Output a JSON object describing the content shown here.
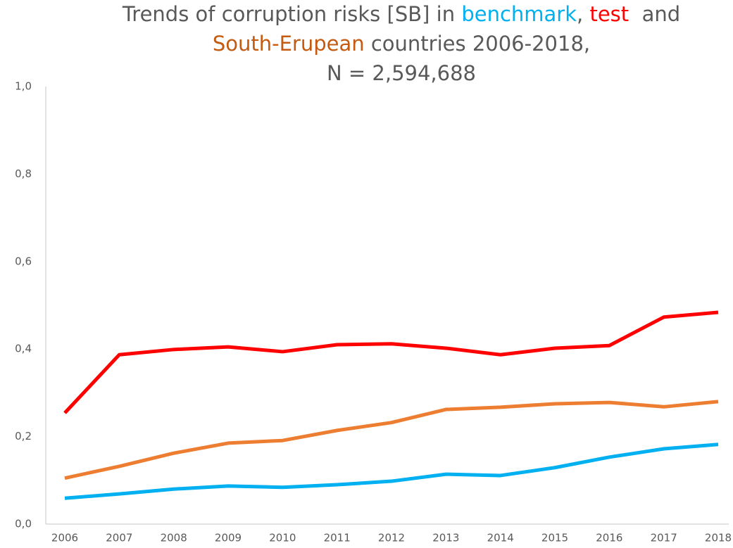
{
  "chart_data": {
    "type": "line",
    "title_lines": [
      [
        {
          "text": "Trends of corruption risks [SB] in ",
          "color": "#595959"
        },
        {
          "text": "benchmark",
          "color": "#00b0f0"
        },
        {
          "text": ", ",
          "color": "#595959"
        },
        {
          "text": "test",
          "color": "#ff0000"
        },
        {
          "text": "  and",
          "color": "#595959"
        }
      ],
      [
        {
          "text": "South-Erupean",
          "color": "#c55a11"
        },
        {
          "text": " countries 2006-2018,",
          "color": "#595959"
        }
      ],
      [
        {
          "text": "N = 2,594,688",
          "color": "#595959"
        }
      ]
    ],
    "categories": [
      "2006",
      "2007",
      "2008",
      "2009",
      "2010",
      "2011",
      "2012",
      "2013",
      "2014",
      "2015",
      "2016",
      "2017",
      "2018"
    ],
    "series": [
      {
        "color": "#ff0000",
        "values": [
          0.254,
          0.387,
          0.399,
          0.405,
          0.394,
          0.41,
          0.412,
          0.402,
          0.387,
          0.402,
          0.408,
          0.473,
          0.484
        ]
      },
      {
        "color": "#ed7d31",
        "values": [
          0.105,
          0.132,
          0.162,
          0.185,
          0.191,
          0.214,
          0.232,
          0.262,
          0.267,
          0.275,
          0.278,
          0.268,
          0.28
        ]
      },
      {
        "color": "#00b0f0",
        "values": [
          0.059,
          0.069,
          0.08,
          0.087,
          0.084,
          0.09,
          0.098,
          0.114,
          0.111,
          0.129,
          0.153,
          0.172,
          0.182
        ]
      }
    ],
    "ylim": [
      0,
      1
    ],
    "yticks": [
      {
        "value": 0,
        "label": "0,0"
      },
      {
        "value": 0.2,
        "label": "0,2"
      },
      {
        "value": 0.4,
        "label": "0,4"
      },
      {
        "value": 0.6,
        "label": "0,6"
      },
      {
        "value": 0.8,
        "label": "0,8"
      },
      {
        "value": 1,
        "label": "1,0"
      }
    ],
    "grid": false
  }
}
